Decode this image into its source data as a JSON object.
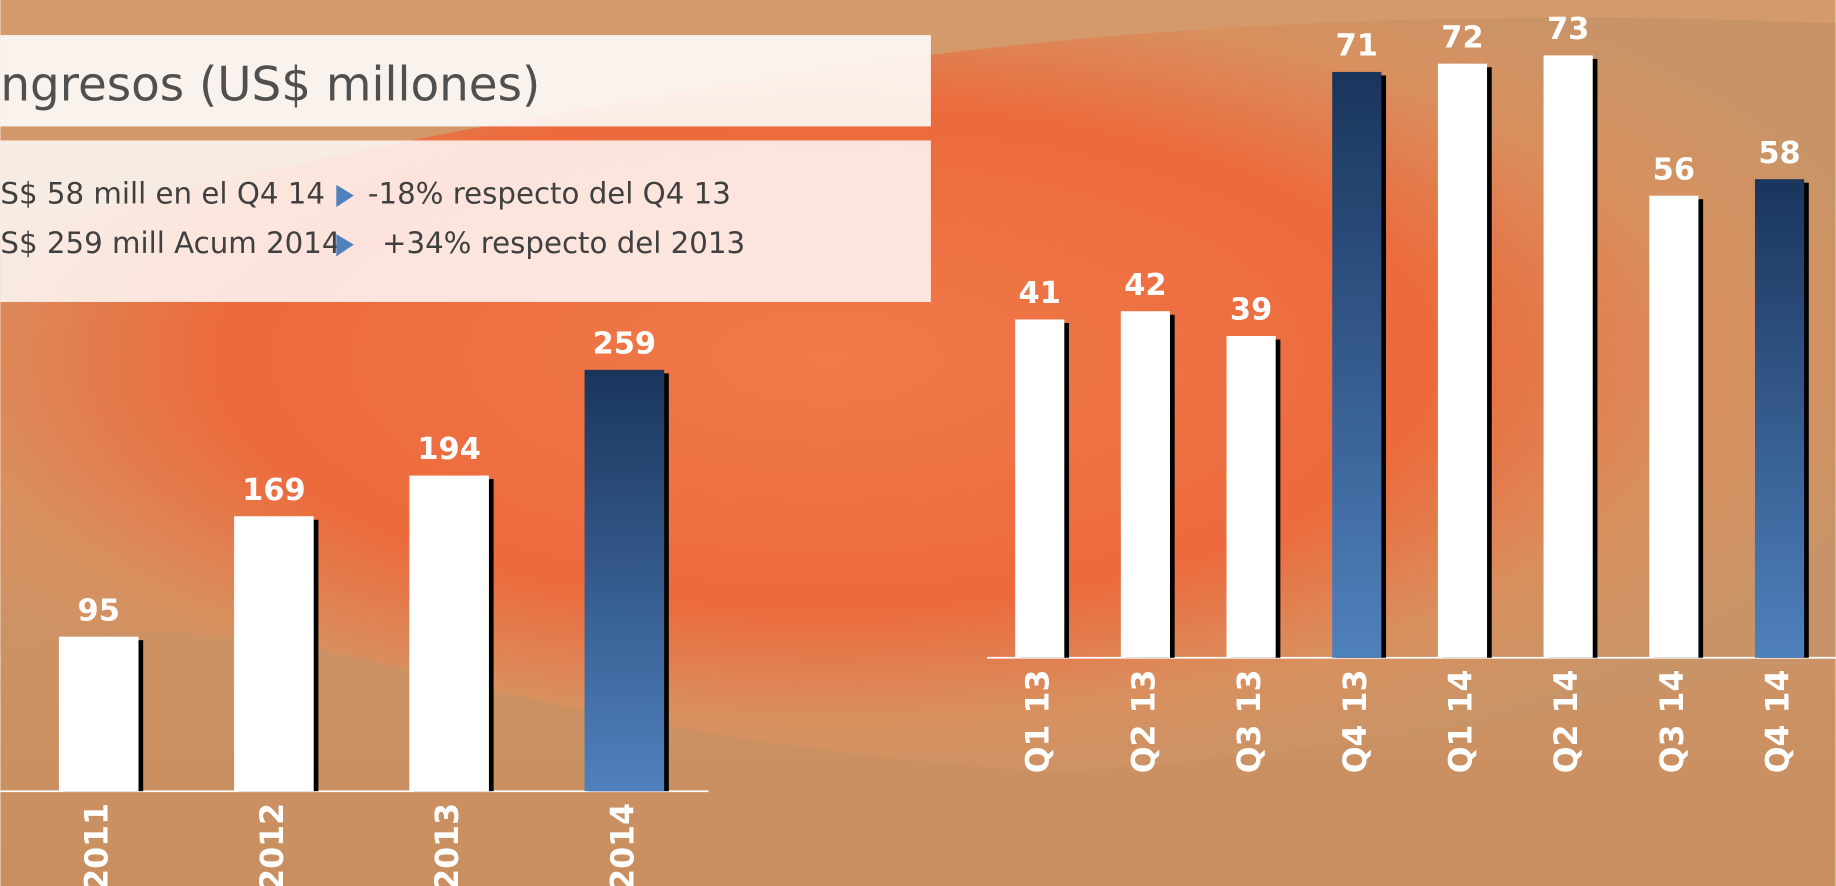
{
  "chart_data": [
    {
      "type": "bar",
      "title": "ngresos (US$ millones)",
      "annotations": [
        {
          "text": "S$ 58 mill en el Q4 14",
          "note": "-18% respecto del Q4 13"
        },
        {
          "text": "S$ 259 mill Acum 2014",
          "note": "+34% respecto del 2013"
        }
      ],
      "categories": [
        "2011",
        "2012",
        "2013",
        "2014"
      ],
      "values": [
        95,
        169,
        194,
        259
      ],
      "colors": [
        "#ffffff",
        "#ffffff",
        "#ffffff",
        "#4f81bd"
      ]
    },
    {
      "type": "bar",
      "categories": [
        "Q1 13",
        "Q2 13",
        "Q3 13",
        "Q4 13",
        "Q1 14",
        "Q2 14",
        "Q3 14",
        "Q4 14"
      ],
      "values": [
        41,
        42,
        39,
        71,
        72,
        73,
        56,
        58
      ],
      "colors": [
        "#ffffff",
        "#ffffff",
        "#ffffff",
        "#4f81bd",
        "#ffffff",
        "#ffffff",
        "#ffffff",
        "#4f81bd"
      ]
    }
  ]
}
